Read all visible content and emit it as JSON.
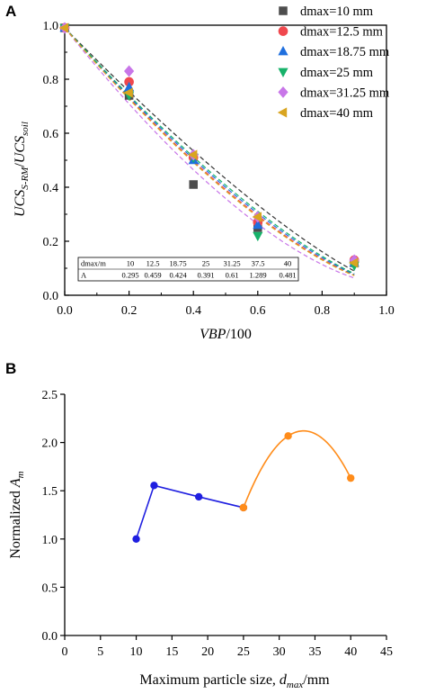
{
  "chart_data": [
    {
      "panel_label": "A",
      "type": "scatter",
      "xlabel": "VBP/100",
      "ylabel": "UCS_{S-RM}/UCS_{soil}",
      "xlim": [
        0.0,
        1.0
      ],
      "ylim": [
        0.0,
        1.0
      ],
      "x_ticks": [
        "0.0",
        "0.2",
        "0.4",
        "0.6",
        "0.8",
        "1.0"
      ],
      "y_ticks": [
        "0.0",
        "0.2",
        "0.4",
        "0.6",
        "0.8",
        "1.0"
      ],
      "legend_position": "top-right",
      "series": [
        {
          "name": "dmax=10 mm",
          "color": "#4d4d4d",
          "marker": "square",
          "A": 0.295,
          "points": [
            [
              0.0,
              0.99
            ],
            [
              0.2,
              0.74
            ],
            [
              0.4,
              0.41
            ],
            [
              0.6,
              0.25
            ],
            [
              0.9,
              0.12
            ]
          ]
        },
        {
          "name": "dmax=12.5 mm",
          "color": "#f0484e",
          "marker": "circle",
          "A": 0.459,
          "points": [
            [
              0.0,
              0.99
            ],
            [
              0.2,
              0.79
            ],
            [
              0.4,
              0.51
            ],
            [
              0.6,
              0.27
            ],
            [
              0.9,
              0.13
            ]
          ]
        },
        {
          "name": "dmax=18.75 mm",
          "color": "#1f6fde",
          "marker": "triangle-up",
          "A": 0.424,
          "points": [
            [
              0.0,
              0.99
            ],
            [
              0.2,
              0.77
            ],
            [
              0.4,
              0.5
            ],
            [
              0.6,
              0.26
            ],
            [
              0.9,
              0.12
            ]
          ]
        },
        {
          "name": "dmax=25 mm",
          "color": "#17b26a",
          "marker": "triangle-down",
          "A": 0.391,
          "points": [
            [
              0.0,
              0.99
            ],
            [
              0.2,
              0.74
            ],
            [
              0.4,
              0.51
            ],
            [
              0.6,
              0.22
            ],
            [
              0.9,
              0.11
            ]
          ]
        },
        {
          "name": "dmax=31.25 mm",
          "color": "#c876e8",
          "marker": "diamond",
          "A": 0.61,
          "points": [
            [
              0.0,
              0.99
            ],
            [
              0.2,
              0.83
            ],
            [
              0.4,
              0.52
            ],
            [
              0.6,
              0.29
            ],
            [
              0.9,
              0.13
            ]
          ]
        },
        {
          "name": "dmax=40 mm",
          "color": "#d9a520",
          "marker": "triangle-left",
          "A": 0.481,
          "points": [
            [
              0.0,
              0.99
            ],
            [
              0.2,
              0.75
            ],
            [
              0.4,
              0.52
            ],
            [
              0.6,
              0.29
            ],
            [
              0.9,
              0.12
            ]
          ]
        }
      ],
      "fit_lines": [
        {
          "color": "#333333",
          "A": 0.295
        },
        {
          "color": "#f0484e",
          "A": 0.459
        },
        {
          "color": "#1f6fde",
          "A": 0.424
        },
        {
          "color": "#17b26a",
          "A": 0.391
        },
        {
          "color": "#c876e8",
          "A": 0.61
        },
        {
          "color": "#d9a520",
          "A": 0.481
        }
      ],
      "table": {
        "headers": [
          "dmax/m",
          "10",
          "12.5",
          "18.75",
          "25",
          "31.25",
          "37.5",
          "40"
        ],
        "row": [
          "A",
          "0.295",
          "0.459",
          "0.424",
          "0.391",
          "0.61",
          "1.289",
          "0.481"
        ]
      }
    },
    {
      "panel_label": "B",
      "type": "line",
      "xlabel": "Maximum particle size, d_max/mm",
      "ylabel": "Normalized A_m",
      "xlim": [
        0,
        45
      ],
      "ylim": [
        0.0,
        2.5
      ],
      "x_ticks": [
        "0",
        "5",
        "10",
        "15",
        "20",
        "25",
        "30",
        "35",
        "40",
        "45"
      ],
      "y_ticks": [
        "0.0",
        "0.5",
        "1.0",
        "1.5",
        "2.0",
        "2.5"
      ],
      "series": [
        {
          "color": "#1f1fe0",
          "style": "straight",
          "x": [
            10,
            12.5,
            18.75,
            25
          ],
          "y": [
            1.0,
            1.555,
            1.437,
            1.325
          ]
        },
        {
          "color": "#ff8c1a",
          "style": "smooth",
          "x": [
            25,
            31.25,
            40
          ],
          "y": [
            1.325,
            2.068,
            1.631
          ]
        }
      ]
    }
  ]
}
